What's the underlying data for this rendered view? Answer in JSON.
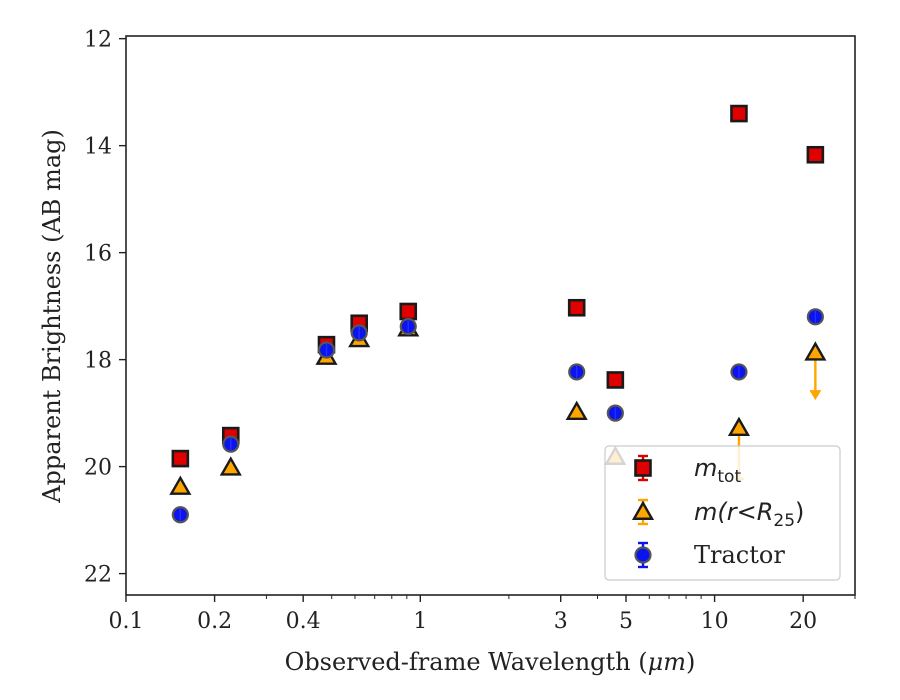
{
  "chart_data": {
    "type": "scatter",
    "xlabel_prefix": "Observed-frame Wavelength (",
    "xlabel_unit": "μm",
    "xlabel_suffix": ")",
    "ylabel": "Apparent Brightness (AB mag)",
    "x_scale": "log",
    "xlim": [
      0.1,
      30
    ],
    "ylim": [
      22.4,
      11.95
    ],
    "y_inverted": true,
    "x_ticks": [
      {
        "value": 0.1,
        "label": "0.1"
      },
      {
        "value": 0.2,
        "label": "0.2"
      },
      {
        "value": 0.4,
        "label": "0.4"
      },
      {
        "value": 1,
        "label": "1"
      },
      {
        "value": 3,
        "label": "3"
      },
      {
        "value": 5,
        "label": "5"
      },
      {
        "value": 10,
        "label": "10"
      },
      {
        "value": 20,
        "label": "20"
      }
    ],
    "y_ticks": [
      {
        "value": 12,
        "label": "12"
      },
      {
        "value": 14,
        "label": "14"
      },
      {
        "value": 16,
        "label": "16"
      },
      {
        "value": 18,
        "label": "18"
      },
      {
        "value": 20,
        "label": "20"
      },
      {
        "value": 22,
        "label": "22"
      }
    ],
    "grid": false,
    "legend_position": "lower-right",
    "series": [
      {
        "name": "m_tot",
        "legend_label": "m",
        "legend_sub": "tot",
        "marker": "square",
        "color": "#e00000",
        "edge_color": "#1a1a1a",
        "errorbar_color": "#e00000",
        "points": [
          {
            "x": 0.153,
            "y": 19.85
          },
          {
            "x": 0.227,
            "y": 19.42
          },
          {
            "x": 0.48,
            "y": 17.72
          },
          {
            "x": 0.62,
            "y": 17.32
          },
          {
            "x": 0.91,
            "y": 17.1
          },
          {
            "x": 3.4,
            "y": 17.03
          },
          {
            "x": 4.6,
            "y": 18.38
          },
          {
            "x": 12.1,
            "y": 13.4
          },
          {
            "x": 22.0,
            "y": 14.17
          }
        ]
      },
      {
        "name": "m(r<R25)",
        "legend_label": "m(r<R",
        "legend_sub": "25",
        "legend_label_end": ")",
        "marker": "triangle",
        "color": "#ffa500",
        "edge_color": "#1a1a1a",
        "errorbar_color": "#ffa500",
        "points": [
          {
            "x": 0.153,
            "y": 20.38
          },
          {
            "x": 0.227,
            "y": 20.02
          },
          {
            "x": 0.48,
            "y": 17.95
          },
          {
            "x": 0.62,
            "y": 17.62
          },
          {
            "x": 0.91,
            "y": 17.42
          },
          {
            "x": 3.4,
            "y": 18.98
          },
          {
            "x": 4.6,
            "y": 19.82
          },
          {
            "x": 12.1,
            "y": 19.28,
            "error_down": 0.95
          },
          {
            "x": 22.0,
            "y": 17.87,
            "upper_limit_arrow": 0.85
          }
        ]
      },
      {
        "name": "Tractor",
        "legend_label": "Tractor",
        "marker": "circle",
        "color": "#0a14ee",
        "edge_color": "#555555",
        "errorbar_color": "#0a14ee",
        "points": [
          {
            "x": 0.153,
            "y": 20.9
          },
          {
            "x": 0.227,
            "y": 19.58
          },
          {
            "x": 0.48,
            "y": 17.82
          },
          {
            "x": 0.62,
            "y": 17.5
          },
          {
            "x": 0.91,
            "y": 17.38
          },
          {
            "x": 3.4,
            "y": 18.23
          },
          {
            "x": 4.6,
            "y": 19.0
          },
          {
            "x": 12.1,
            "y": 18.23
          },
          {
            "x": 22.0,
            "y": 17.2
          }
        ]
      }
    ]
  }
}
